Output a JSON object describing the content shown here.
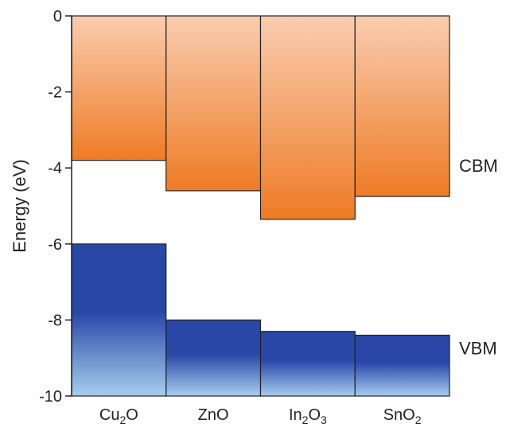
{
  "chart_data": {
    "type": "bar",
    "ylabel": "Energy (eV)",
    "ylim": [
      -10,
      0
    ],
    "yticks": [
      0,
      -2,
      -4,
      -6,
      -8,
      -10
    ],
    "grid": false,
    "categories": [
      {
        "base": "Cu",
        "sub1": "2",
        "mid": "O",
        "sub2": ""
      },
      {
        "base": "ZnO",
        "sub1": "",
        "mid": "",
        "sub2": ""
      },
      {
        "base": "In",
        "sub1": "2",
        "mid": "O",
        "sub2": "3"
      },
      {
        "base": "SnO",
        "sub1": "2",
        "mid": "",
        "sub2": ""
      }
    ],
    "series": [
      {
        "name": "CBM",
        "values": [
          -3.8,
          -4.6,
          -5.35,
          -4.75
        ],
        "extends_to": 0,
        "color_top": "#f9cdb0",
        "color_bottom": "#ef7b25"
      },
      {
        "name": "VBM",
        "values": [
          -6.0,
          -8.0,
          -8.3,
          -8.4
        ],
        "extends_to": -10,
        "color_top": "#2a47a8",
        "color_bottom": "#a8cdee"
      }
    ]
  }
}
